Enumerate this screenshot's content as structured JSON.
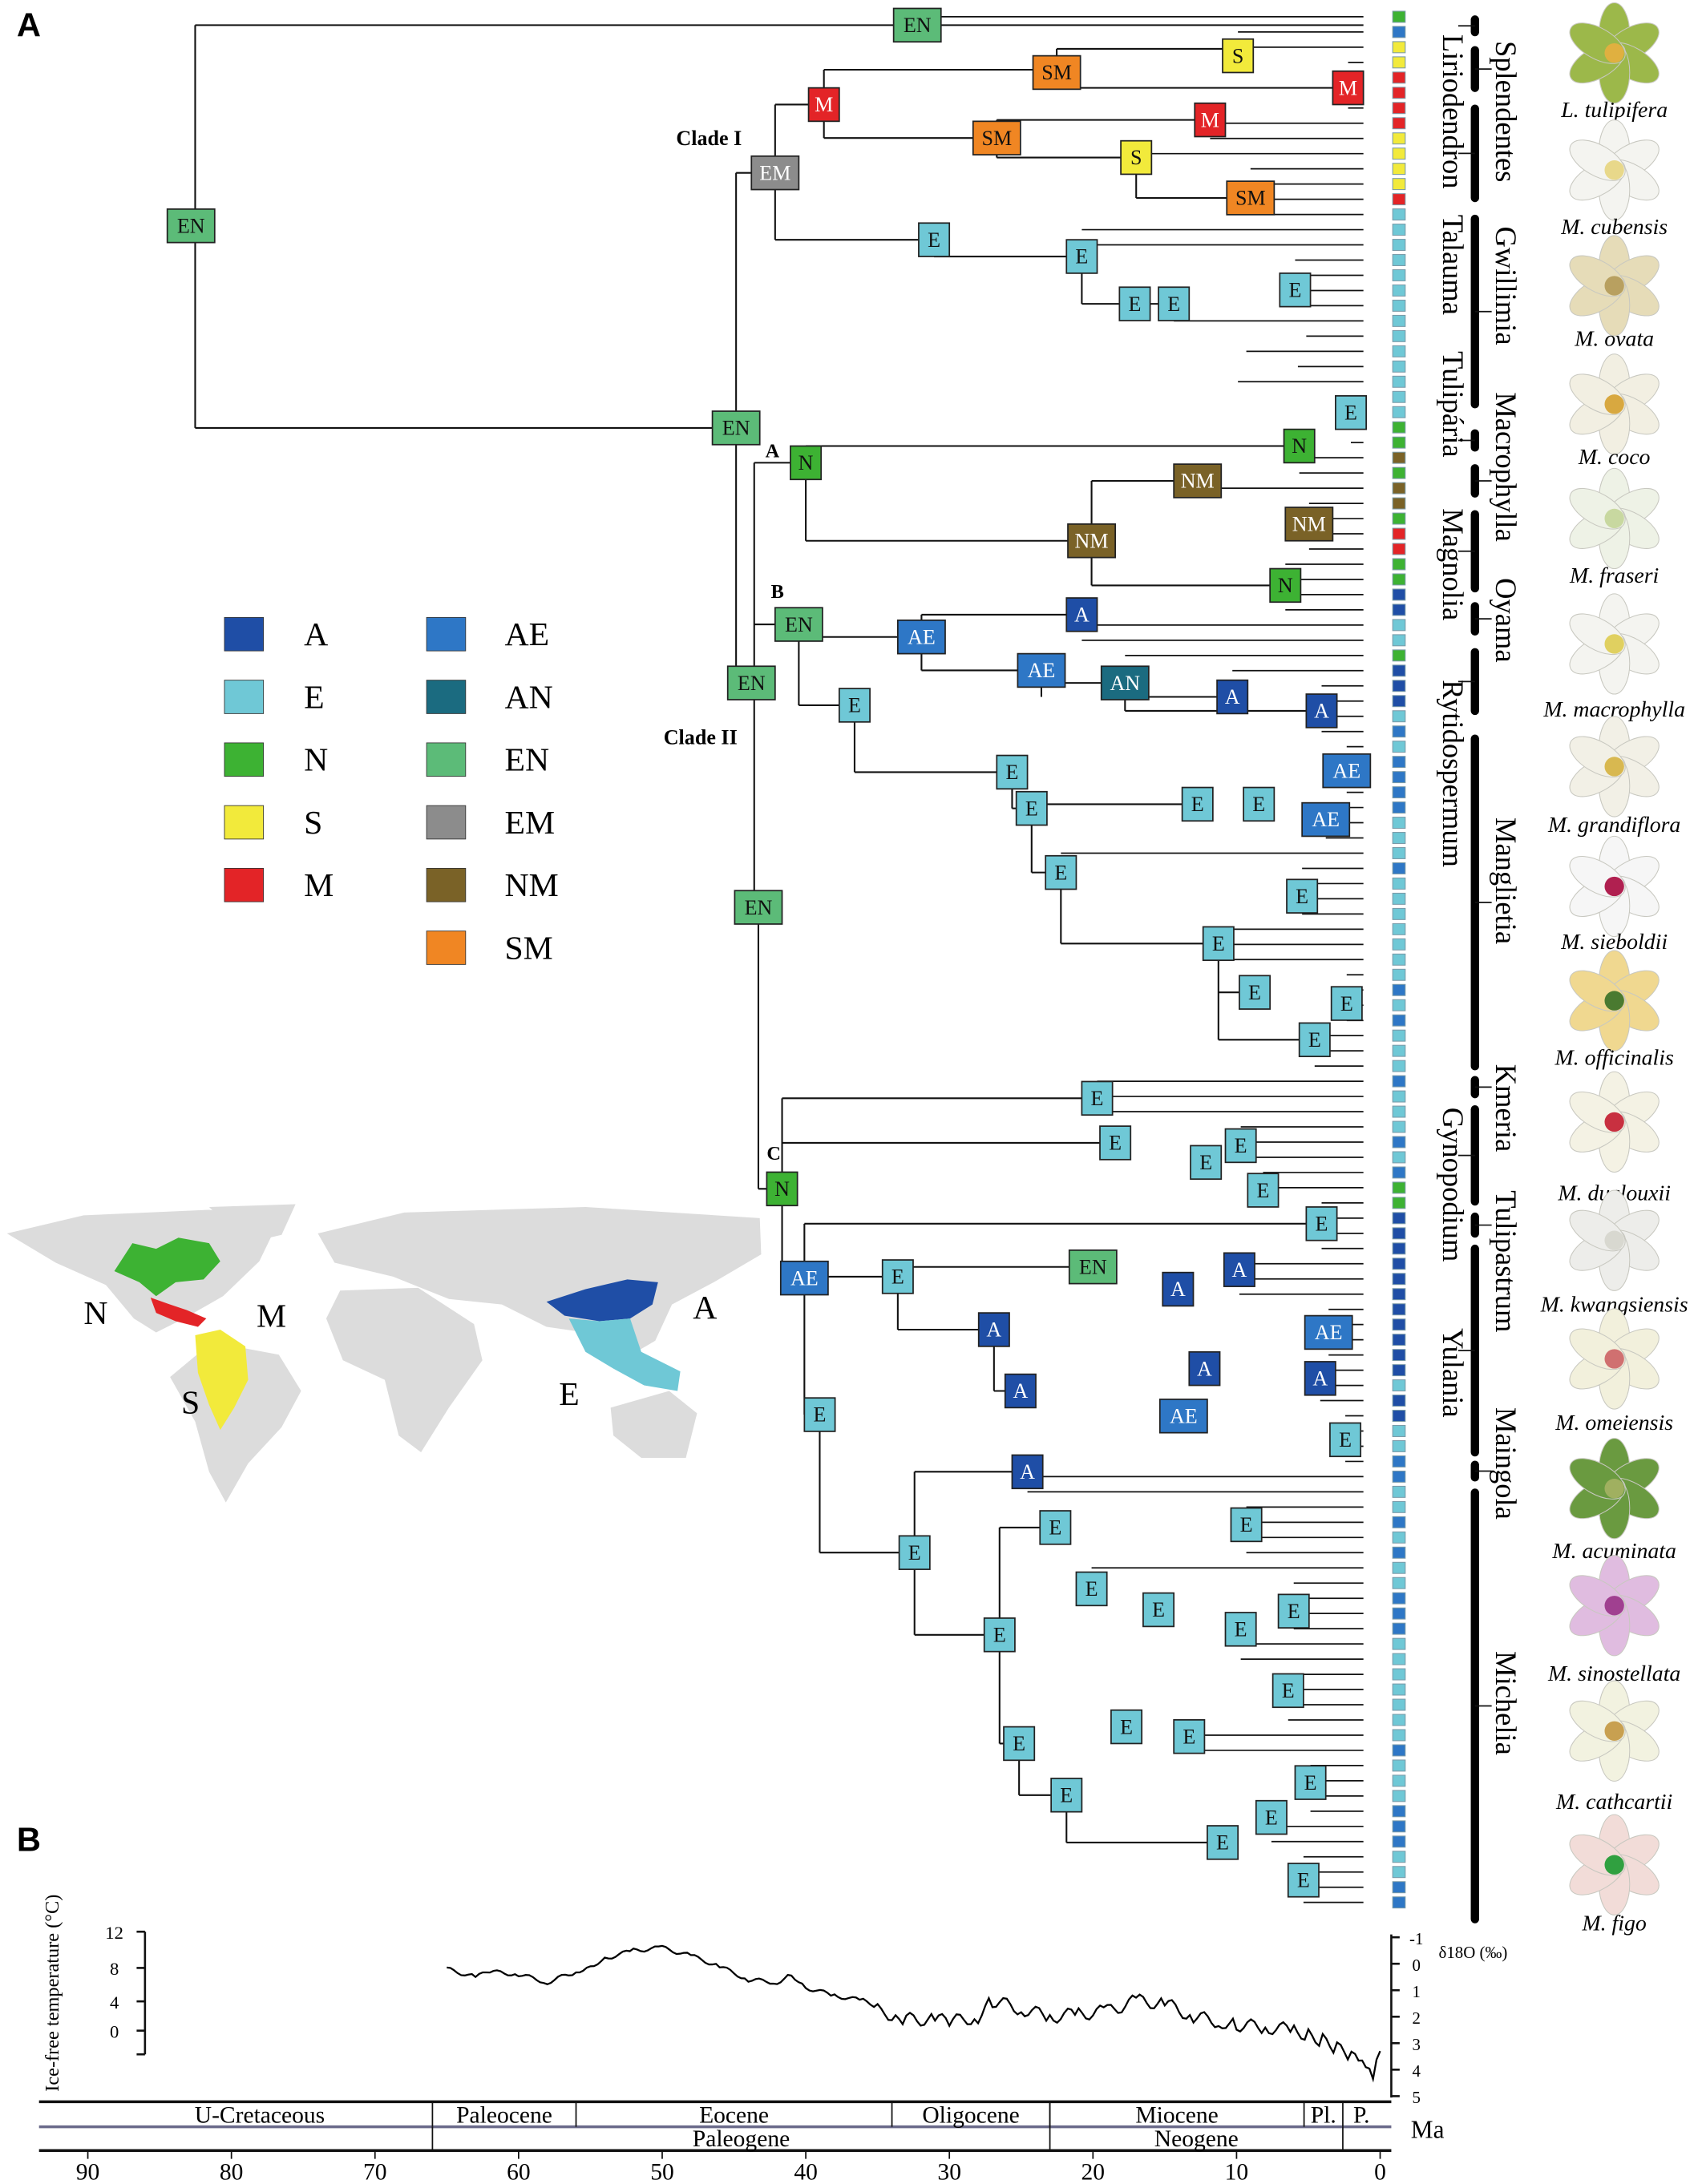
{
  "panels": {
    "a": "A",
    "b": "B"
  },
  "colors": {
    "A": "#1f4ea6",
    "E": "#6fc8d6",
    "N": "#3db233",
    "S": "#f2ea3b",
    "M": "#e32427",
    "AE": "#2e77c6",
    "AN": "#1b6b80",
    "EN": "#5cbb78",
    "EM": "#8c8c8c",
    "NM": "#7a6227",
    "SM": "#f08623"
  },
  "legend": {
    "col1": [
      "A",
      "E",
      "N",
      "S",
      "M"
    ],
    "col2": [
      "AE",
      "AN",
      "EN",
      "EM",
      "NM",
      "SM"
    ]
  },
  "clade_labels": {
    "clade1": "Clade I",
    "clade2": "Clade II",
    "a": "A",
    "b": "B",
    "c": "C"
  },
  "tree": {
    "nodes": [
      "EN",
      "SM",
      "S",
      "M",
      "M",
      "M",
      "SM",
      "S",
      "SM",
      "EN",
      "EM",
      "E",
      "E",
      "E",
      "E",
      "E",
      "E",
      "EN",
      "N",
      "N",
      "NM",
      "NM",
      "NM",
      "N",
      "EN",
      "AE",
      "A",
      "AE",
      "AN",
      "A",
      "A",
      "EN",
      "E",
      "E",
      "AE",
      "E",
      "E",
      "E",
      "AE",
      "E",
      "E",
      "EN",
      "E",
      "E",
      "E",
      "E",
      "E",
      "E",
      "E",
      "E",
      "E",
      "E",
      "N",
      "E",
      "EN",
      "A",
      "A",
      "A",
      "AE",
      "A",
      "A",
      "A",
      "AE",
      "AE",
      "E",
      "A",
      "E",
      "E",
      "E",
      "E",
      "E",
      "E",
      "E",
      "E",
      "E",
      "E",
      "E",
      "E",
      "E",
      "E",
      "E",
      "E",
      "E",
      "E",
      "E"
    ],
    "tips": [
      "N",
      "AE",
      "S",
      "S",
      "M",
      "M",
      "M",
      "M",
      "S",
      "S",
      "S",
      "S",
      "M",
      "E",
      "E",
      "E",
      "E",
      "E",
      "E",
      "E",
      "E",
      "E",
      "E",
      "E",
      "E",
      "E",
      "E",
      "N",
      "N",
      "NM",
      "N",
      "NM",
      "NM",
      "N",
      "M",
      "M",
      "N",
      "N",
      "A",
      "A",
      "E",
      "E",
      "N",
      "A",
      "A",
      "A",
      "E",
      "AE",
      "E",
      "AE",
      "AE",
      "AE",
      "AE",
      "E",
      "E",
      "E",
      "AE",
      "E",
      "E",
      "E",
      "E",
      "E",
      "E",
      "E",
      "AE",
      "E",
      "AE",
      "E",
      "E",
      "E",
      "AE",
      "E",
      "E",
      "E",
      "AE",
      "E",
      "AE",
      "N",
      "N",
      "A",
      "A",
      "A",
      "A",
      "A",
      "A",
      "A",
      "A",
      "A",
      "A",
      "A",
      "E",
      "A",
      "A",
      "E",
      "E",
      "AE",
      "AE",
      "E",
      "E",
      "AE",
      "E",
      "AE",
      "E",
      "E",
      "AE",
      "AE",
      "AE",
      "E",
      "E",
      "E",
      "E",
      "E",
      "E",
      "E",
      "AE",
      "E",
      "E",
      "E",
      "AE",
      "AE",
      "AE",
      "E",
      "E",
      "AE",
      "AE"
    ]
  },
  "genera": [
    "Liriodendron",
    "Splendentes",
    "Talauma",
    "Gwillimia",
    "Tulipária",
    "Macrophylla",
    "Magnolia",
    "Oyama",
    "Rytidospermum",
    "Manglietia",
    "Kmeria",
    "Gynopodium",
    "Tulipastrum",
    "Yulania",
    "Maingola",
    "Michelia"
  ],
  "flowers": [
    {
      "name": "L. tulipifera",
      "petal": "#9cb84a",
      "center": "#e0b040"
    },
    {
      "name": "M. cubensis",
      "petal": "#f4f4f0",
      "center": "#e8d88a"
    },
    {
      "name": "M. ovata",
      "petal": "#e6dcb8",
      "center": "#b8a060"
    },
    {
      "name": "M. coco",
      "petal": "#f2efe2",
      "center": "#d8a840"
    },
    {
      "name": "M. fraseri",
      "petal": "#eef2e6",
      "center": "#c8d8a0"
    },
    {
      "name": "M. macrophylla",
      "petal": "#f4f4f0",
      "center": "#e0d060"
    },
    {
      "name": "M. grandiflora",
      "petal": "#f2f0e6",
      "center": "#d8b850"
    },
    {
      "name": "M. sieboldii",
      "petal": "#f6f6f6",
      "center": "#b02050"
    },
    {
      "name": "M. officinalis",
      "petal": "#f0d890",
      "center": "#4a7a30"
    },
    {
      "name": "M. duclouxii",
      "petal": "#f4f2e4",
      "center": "#c83040"
    },
    {
      "name": "M. kwangsiensis",
      "petal": "#ededea",
      "center": "#d8d8d0"
    },
    {
      "name": "M. omeiensis",
      "petal": "#f2f0dc",
      "center": "#d07070"
    },
    {
      "name": "M. acuminata",
      "petal": "#6a9a40",
      "center": "#a0b060"
    },
    {
      "name": "M. sinostellata",
      "petal": "#e0bce0",
      "center": "#a04090"
    },
    {
      "name": "M. cathcartii",
      "petal": "#f2f2e0",
      "center": "#c8a050"
    },
    {
      "name": "M. figo",
      "petal": "#f2dcd8",
      "center": "#30a040"
    }
  ],
  "map_labels": {
    "N": "N",
    "M": "M",
    "S": "S",
    "A": "A",
    "E": "E"
  },
  "chart_data": {
    "type": "line",
    "ylabel": "Ice-free temperature (°C)",
    "y2label": "δ18O (‰)",
    "xlabel": "Ma",
    "xlim": [
      92,
      0
    ],
    "yticks": [
      "12",
      "8",
      "4",
      "0"
    ],
    "y2ticks": [
      "-1",
      "0",
      "1",
      "2",
      "3",
      "4",
      "5"
    ],
    "y2lim": [
      -1,
      5
    ],
    "xticks": [
      "90",
      "80",
      "70",
      "60",
      "50",
      "40",
      "30",
      "20",
      "10",
      "0"
    ],
    "series": [
      {
        "name": "δ18O",
        "x": [
          65,
          63,
          62,
          60,
          58,
          56,
          55,
          54,
          52,
          50,
          48,
          46,
          44,
          42,
          41,
          40,
          38,
          36,
          35,
          34,
          33,
          31,
          30,
          28,
          27,
          25,
          23,
          21,
          19,
          17,
          15,
          13,
          11,
          10,
          8,
          6,
          5,
          4,
          3,
          2,
          1.5,
          1,
          0.5,
          0
        ],
        "y": [
          0.2,
          0.5,
          0.3,
          0.4,
          0.7,
          0.3,
          0.1,
          -0.2,
          -0.5,
          -0.6,
          -0.3,
          0.1,
          0.6,
          0.7,
          0.4,
          0.9,
          1.2,
          1.4,
          1.6,
          2.2,
          2.1,
          2.1,
          2.2,
          2.0,
          1.4,
          1.7,
          2.0,
          1.9,
          1.8,
          1.4,
          1.5,
          2.0,
          2.2,
          2.3,
          2.4,
          2.5,
          2.7,
          2.9,
          3.2,
          3.5,
          3.8,
          4.0,
          4.4,
          3.3
        ]
      }
    ],
    "epochs": [
      {
        "label": "U-Cretaceous",
        "start": 92,
        "end": 66
      },
      {
        "label": "Paleocene",
        "start": 66,
        "end": 56
      },
      {
        "label": "Eocene",
        "start": 56,
        "end": 34
      },
      {
        "label": "Oligocene",
        "start": 34,
        "end": 23
      },
      {
        "label": "Miocene",
        "start": 23,
        "end": 5.3
      },
      {
        "label": "Pl.",
        "start": 5.3,
        "end": 2.6
      },
      {
        "label": "P.",
        "start": 2.6,
        "end": 0
      }
    ],
    "periods": [
      {
        "label": "Paleogene",
        "start": 66,
        "end": 23
      },
      {
        "label": "Neogene",
        "start": 23,
        "end": 2.6
      }
    ]
  }
}
